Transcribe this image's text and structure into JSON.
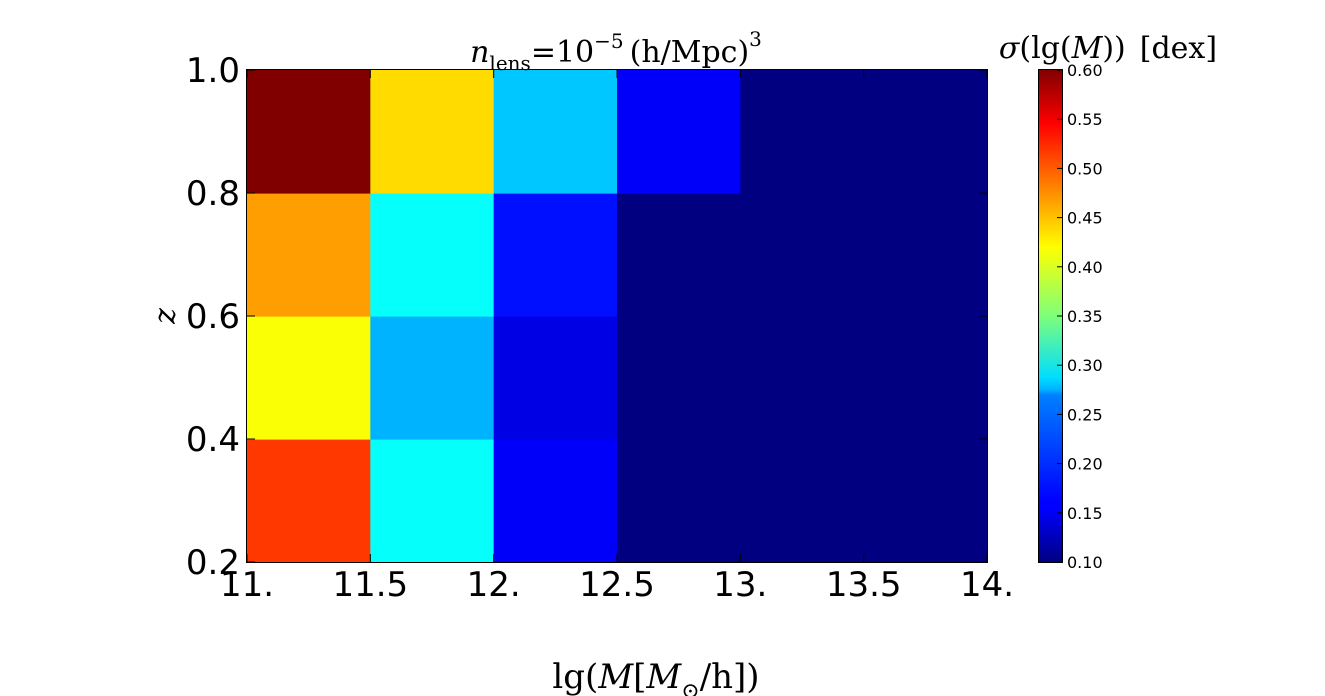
{
  "chart_data": {
    "type": "heatmap",
    "title": {
      "var": "n",
      "sub": "lens",
      "eq": "=10",
      "exp": "−5",
      "unit": "(h/Mpc)",
      "unit_exp": "3"
    },
    "xlabel": {
      "prefix": "lg(",
      "var": "M",
      "open": "[",
      "var2": "M",
      "sub": "⊙",
      "tail": "/h])"
    },
    "ylabel": "z",
    "colorbar_label": {
      "sigma": "σ",
      "open": "(lg(",
      "var": "M",
      "close": "))",
      "unit": "[dex]"
    },
    "x_edges": [
      11.0,
      11.5,
      12.0,
      12.5,
      13.0,
      13.5,
      14.0
    ],
    "y_edges": [
      0.2,
      0.4,
      0.6,
      0.8,
      1.0
    ],
    "x_tick_labels": [
      "11.",
      "11.5",
      "12.",
      "12.5",
      "13.",
      "13.5",
      "14."
    ],
    "y_tick_labels": [
      "0.2",
      "0.4",
      "0.6",
      "0.8",
      "1.0"
    ],
    "xlim": [
      11.0,
      14.0
    ],
    "ylim": [
      0.2,
      1.0
    ],
    "values": [
      [
        0.51,
        0.29,
        0.16,
        0.1,
        0.1,
        0.1
      ],
      [
        0.41,
        0.25,
        0.15,
        0.1,
        0.1,
        0.1
      ],
      [
        0.46,
        0.29,
        0.17,
        0.1,
        0.1,
        0.1
      ],
      [
        0.6,
        0.43,
        0.26,
        0.16,
        0.1,
        0.1
      ]
    ],
    "colorbar": {
      "colormap": "jet",
      "range": [
        0.1,
        0.6
      ],
      "ticks": [
        0.1,
        0.15,
        0.2,
        0.25,
        0.3,
        0.35,
        0.4,
        0.45,
        0.5,
        0.55,
        0.6
      ],
      "tick_labels": [
        "0.10",
        "0.15",
        "0.20",
        "0.25",
        "0.30",
        "0.35",
        "0.40",
        "0.45",
        "0.50",
        "0.55",
        "0.60"
      ]
    }
  }
}
